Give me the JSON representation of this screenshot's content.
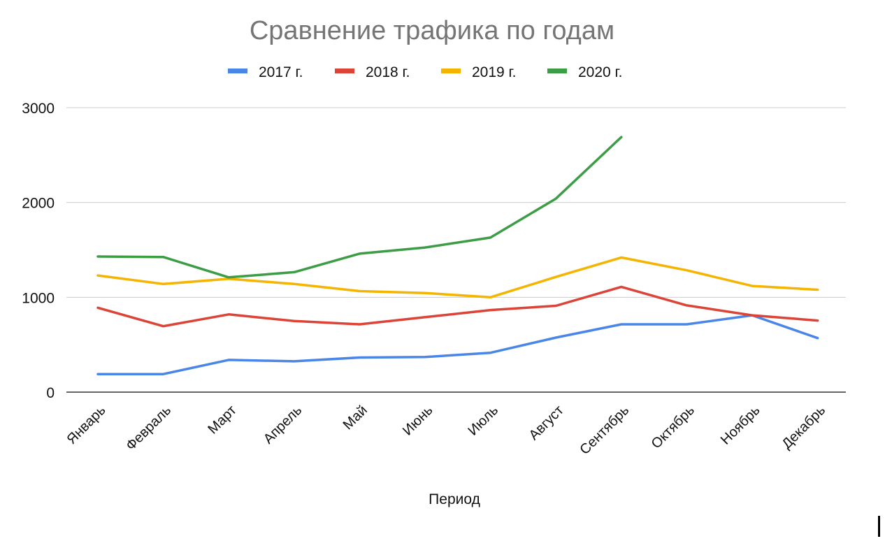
{
  "chart_data": {
    "type": "line",
    "title": "Сравнение трафика по годам",
    "xlabel": "Период",
    "ylabel": "",
    "ylim": [
      0,
      3000
    ],
    "yticks": [
      0,
      1000,
      2000,
      3000
    ],
    "grid": true,
    "legend_position": "top",
    "categories": [
      "Январь",
      "Февраль",
      "Март",
      "Апрель",
      "Май",
      "Июнь",
      "Июль",
      "Август",
      "Сентябрь",
      "Октябрь",
      "Ноябрь",
      "Декабрь"
    ],
    "series": [
      {
        "name": "2017 г.",
        "color": "#4a86e8",
        "values": [
          190,
          190,
          340,
          325,
          365,
          370,
          415,
          575,
          715,
          715,
          810,
          570
        ]
      },
      {
        "name": "2018 г.",
        "color": "#db4437",
        "values": [
          890,
          695,
          820,
          750,
          715,
          790,
          865,
          910,
          1110,
          915,
          810,
          755
        ]
      },
      {
        "name": "2019 г.",
        "color": "#f4b400",
        "values": [
          1230,
          1140,
          1195,
          1140,
          1065,
          1045,
          1000,
          1215,
          1420,
          1285,
          1120,
          1080
        ]
      },
      {
        "name": "2020 г.",
        "color": "#3d9c46",
        "values": [
          1430,
          1425,
          1210,
          1265,
          1460,
          1525,
          1630,
          2040,
          2690,
          null,
          null,
          null
        ]
      }
    ]
  }
}
